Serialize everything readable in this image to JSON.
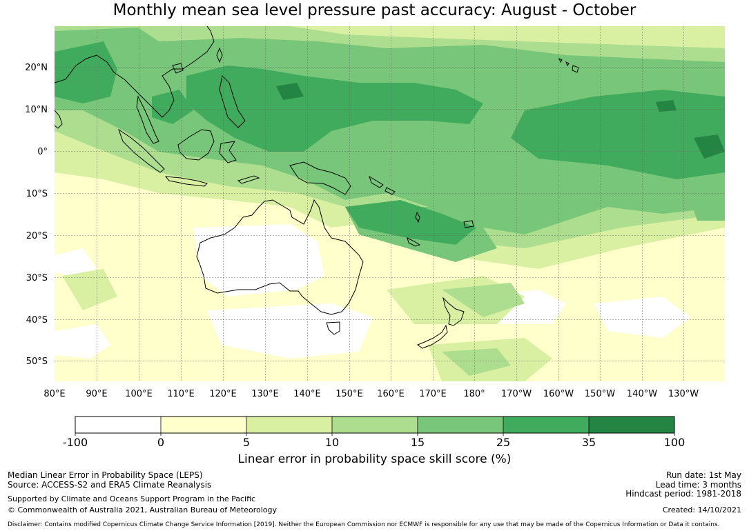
{
  "title": "Monthly mean sea level pressure past accuracy: August - October",
  "lat_labels": [
    "20°N",
    "10°N",
    "0°",
    "10°S",
    "20°S",
    "30°S",
    "40°S",
    "50°S"
  ],
  "lon_labels": [
    "80°E",
    "90°E",
    "100°E",
    "110°E",
    "120°E",
    "130°E",
    "140°E",
    "150°E",
    "160°E",
    "170°E",
    "180°",
    "170°W",
    "160°W",
    "150°W",
    "140°W",
    "130°W"
  ],
  "colorbar": {
    "title": "Linear error in probability space skill score (%)",
    "ticks": [
      "-100",
      "0",
      "5",
      "10",
      "15",
      "25",
      "35",
      "100"
    ],
    "colors": [
      "#ffffff",
      "#ffffcc",
      "#d9f0a3",
      "#addd8e",
      "#78c679",
      "#41ab5d",
      "#238443"
    ]
  },
  "footer": {
    "metric": "Median Linear Error in Probability Space (LEPS)",
    "source": "Source: ACCESS-S2 and ERA5 Climate Reanalysis",
    "support": "Supported by Climate and Oceans Support Program in the Pacific",
    "copyright": "© Commonwealth of Australia 2021, Australian Bureau of Meteorology",
    "run_date": "Run date: 1st May",
    "lead_time": "Lead time: 3 months",
    "hindcast": "Hindcast period: 1981-2018",
    "created": "Created: 14/10/2021",
    "disclaimer": "Disclaimer: Contains modified Copernicus Climate Change Service Information [2019]. Neither the European Commission nor ECMWF is responsible for any use that may be made of the Copernicus Information or Data it contains."
  }
}
